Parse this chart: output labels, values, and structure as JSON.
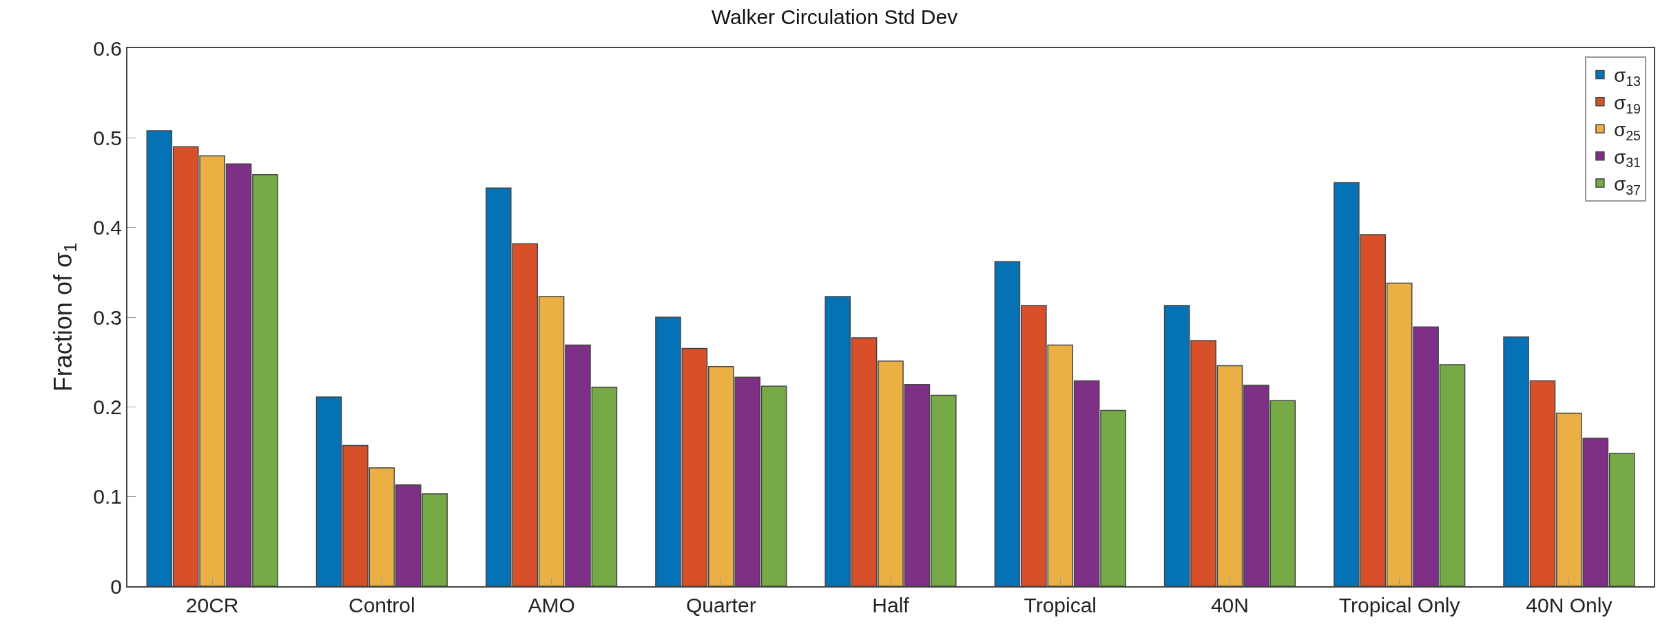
{
  "chart_data": {
    "type": "bar",
    "title": "Walker Circulation Std Dev",
    "ylabel": "Fraction of σ$_{1}$",
    "categories": [
      "20CR",
      "Control",
      "AMO",
      "Quarter",
      "Half",
      "Tropical",
      "40N",
      "Tropical Only",
      "40N Only"
    ],
    "series": [
      {
        "name": "σ$_{13}$",
        "color": "#0672b6",
        "values": [
          0.508,
          0.211,
          0.444,
          0.3,
          0.323,
          0.362,
          0.313,
          0.45,
          0.278
        ]
      },
      {
        "name": "σ$_{19}$",
        "color": "#d8502a",
        "values": [
          0.49,
          0.157,
          0.382,
          0.265,
          0.277,
          0.313,
          0.274,
          0.392,
          0.229
        ]
      },
      {
        "name": "σ$_{25}$",
        "color": "#ebb044",
        "values": [
          0.48,
          0.132,
          0.323,
          0.245,
          0.251,
          0.269,
          0.246,
          0.338,
          0.193
        ]
      },
      {
        "name": "σ$_{31}$",
        "color": "#7e2f86",
        "values": [
          0.471,
          0.113,
          0.269,
          0.233,
          0.225,
          0.229,
          0.224,
          0.289,
          0.165
        ]
      },
      {
        "name": "σ$_{37}$",
        "color": "#76aa47",
        "values": [
          0.459,
          0.103,
          0.222,
          0.223,
          0.213,
          0.196,
          0.207,
          0.247,
          0.148
        ]
      }
    ],
    "ylim": [
      0,
      0.6
    ],
    "yticks": [
      0,
      0.1,
      0.2,
      0.3,
      0.4,
      0.5,
      0.6
    ],
    "legend": "top right"
  }
}
